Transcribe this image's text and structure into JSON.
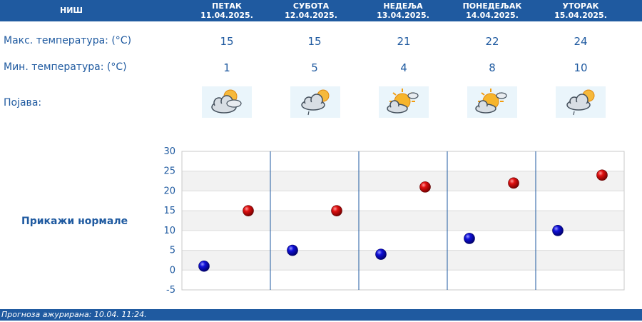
{
  "header": {
    "city": "НИШ",
    "days": [
      {
        "day": "ПЕТАК",
        "date": "11.04.2025."
      },
      {
        "day": "СУБОТА",
        "date": "12.04.2025."
      },
      {
        "day": "НЕДЕЉА",
        "date": "13.04.2025."
      },
      {
        "day": "ПОНЕДЕЉАК",
        "date": "14.04.2025."
      },
      {
        "day": "УТОРАК",
        "date": "15.04.2025."
      }
    ]
  },
  "rows": {
    "max_label": "Макс. температура: (°C)",
    "min_label": "Мин. температура: (°C)",
    "phenomenon_label": "Појава:"
  },
  "forecast": {
    "max": [
      "15",
      "15",
      "21",
      "22",
      "24"
    ],
    "min": [
      "1",
      "5",
      "4",
      "8",
      "10"
    ],
    "icons": [
      "cloudy-sun-icon",
      "cloud-sun-drizzle-icon",
      "sun-cloud-icon",
      "sun-cloud-icon",
      "cloud-sun-drizzle-icon"
    ]
  },
  "normals_link": "Прикажи нормале",
  "footer": {
    "updated": "Прогноза ажурирана:  10.04.  11:24."
  },
  "colors": {
    "brand": "#1f5aa0",
    "max_marker": "#c80000",
    "min_marker": "#0000b4"
  },
  "chart_data": {
    "type": "scatter",
    "categories": [
      "ПЕТАК",
      "СУБОТА",
      "НЕДЕЉА",
      "ПОНЕДЕЉАК",
      "УТОРАК"
    ],
    "series": [
      {
        "values": [
          15,
          15,
          21,
          22,
          24
        ]
      },
      {
        "values": [
          1,
          5,
          4,
          8,
          10
        ]
      }
    ],
    "ylim": [
      -5,
      30
    ],
    "yticks": [
      -5,
      0,
      5,
      10,
      15,
      20,
      25,
      30
    ],
    "grid": true,
    "title": "",
    "xlabel": "",
    "ylabel": ""
  }
}
